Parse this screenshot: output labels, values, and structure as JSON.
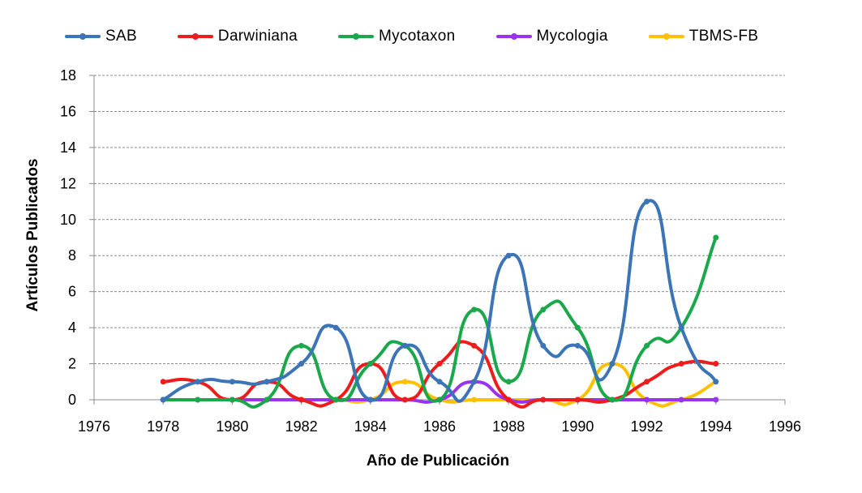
{
  "chart_data": {
    "type": "line",
    "title": "",
    "xlabel": "Año de Publicación",
    "ylabel": "Artículos Publicados",
    "xlim": [
      1976,
      1996
    ],
    "ylim": [
      0,
      18
    ],
    "x_ticks": [
      "1976",
      "1978",
      "1980",
      "1982",
      "1984",
      "1986",
      "1988",
      "1990",
      "1992",
      "1994",
      "1996"
    ],
    "y_ticks": [
      "0",
      "2",
      "4",
      "6",
      "8",
      "10",
      "12",
      "14",
      "16",
      "18"
    ],
    "grid": "horizontal dashed",
    "legend_position": "top",
    "smooth": true,
    "x": [
      1978,
      1979,
      1980,
      1981,
      1982,
      1983,
      1984,
      1985,
      1986,
      1987,
      1988,
      1989,
      1990,
      1991,
      1992,
      1993,
      1994
    ],
    "series": [
      {
        "name": "SAB",
        "color": "#3c74b8",
        "values": [
          0,
          1,
          1,
          1,
          2,
          4,
          0,
          3,
          1,
          1,
          8,
          3,
          3,
          2,
          11,
          4,
          1
        ]
      },
      {
        "name": "Darwiniana",
        "color": "#ee1c1c",
        "values": [
          1,
          1,
          0,
          1,
          0,
          0,
          2,
          0,
          2,
          3,
          0,
          0,
          0,
          0,
          1,
          2,
          2
        ]
      },
      {
        "name": "Mycotaxon",
        "color": "#1aa84a",
        "values": [
          0,
          0,
          0,
          0,
          3,
          0,
          2,
          3,
          0,
          5,
          1,
          5,
          4,
          0,
          3,
          4,
          9
        ]
      },
      {
        "name": "Mycologia",
        "color": "#9933ee",
        "values": [
          0,
          0,
          0,
          0,
          0,
          0,
          0,
          0,
          0,
          1,
          0,
          0,
          0,
          0,
          0,
          0,
          0
        ]
      },
      {
        "name": "TBMS-FB",
        "color": "#ffc000",
        "values": [
          0,
          0,
          0,
          0,
          0,
          0,
          0,
          1,
          0,
          0,
          0,
          0,
          0,
          2,
          0,
          0,
          1
        ]
      }
    ]
  }
}
